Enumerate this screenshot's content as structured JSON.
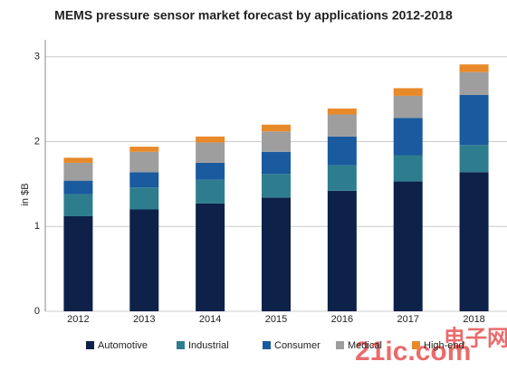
{
  "chart_data": {
    "type": "stacked_bar",
    "title": "MEMS pressure sensor market forecast by applications 2012-2018",
    "y_label": "in $B",
    "categories": [
      "2012",
      "2013",
      "2014",
      "2015",
      "2016",
      "2017",
      "2018"
    ],
    "series": [
      {
        "name": "Automotive",
        "color": "#0d2149",
        "values": [
          1.12,
          1.2,
          1.27,
          1.34,
          1.42,
          1.53,
          1.64
        ]
      },
      {
        "name": "Industrial",
        "color": "#2e7d8e",
        "values": [
          0.26,
          0.26,
          0.28,
          0.28,
          0.3,
          0.31,
          0.32
        ]
      },
      {
        "name": "Consumer",
        "color": "#1a5a9e",
        "values": [
          0.16,
          0.18,
          0.2,
          0.26,
          0.34,
          0.44,
          0.59
        ]
      },
      {
        "name": "Medical",
        "color": "#9e9e9e",
        "values": [
          0.21,
          0.24,
          0.24,
          0.24,
          0.26,
          0.26,
          0.27
        ]
      },
      {
        "name": "High-end",
        "color": "#e8892a",
        "values": [
          0.06,
          0.06,
          0.07,
          0.08,
          0.07,
          0.09,
          0.09
        ]
      }
    ],
    "ylim": [
      0,
      3.2
    ],
    "yticks": [
      0,
      1,
      2,
      3
    ],
    "grid": true,
    "legend": "bottom",
    "watermark": [
      "21ic.com",
      "电子网"
    ]
  }
}
